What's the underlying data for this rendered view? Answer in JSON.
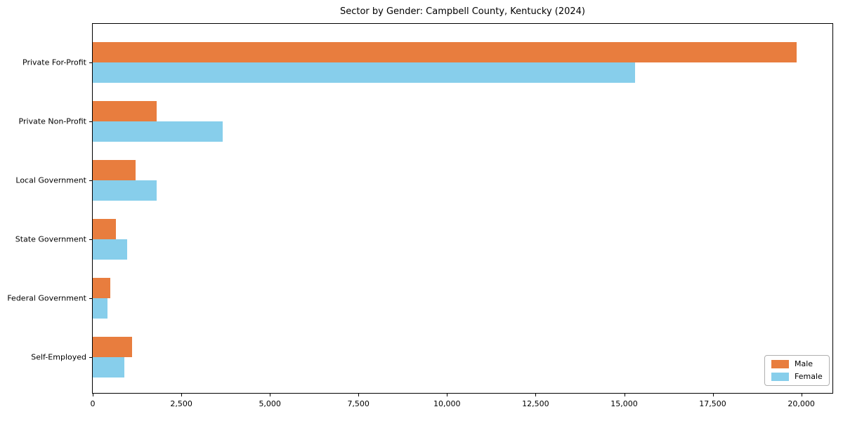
{
  "chart_data": {
    "type": "bar",
    "orientation": "horizontal",
    "title": "Sector by Gender: Campbell County, Kentucky (2024)",
    "xlabel": "",
    "ylabel": "",
    "categories": [
      "Private For-Profit",
      "Private Non-Profit",
      "Local Government",
      "State Government",
      "Federal Government",
      "Self-Employed"
    ],
    "series": [
      {
        "name": "Male",
        "color": "#e87d3e",
        "values": [
          19870,
          1800,
          1200,
          650,
          490,
          1110
        ]
      },
      {
        "name": "Female",
        "color": "#87ceeb",
        "values": [
          15300,
          3670,
          1800,
          970,
          420,
          890
        ]
      }
    ],
    "x_ticks": [
      0,
      2500,
      5000,
      7500,
      10000,
      12500,
      15000,
      17500,
      20000
    ],
    "x_tick_labels": [
      "0",
      "2,500",
      "5,000",
      "7,500",
      "10,000",
      "12,500",
      "15,000",
      "17,500",
      "20,000"
    ],
    "xlim": [
      0,
      20880
    ],
    "grid": false,
    "legend": {
      "position": "lower right"
    },
    "colors": {
      "background": "#ffffff",
      "spine": "#000000",
      "text": "#000000"
    }
  }
}
